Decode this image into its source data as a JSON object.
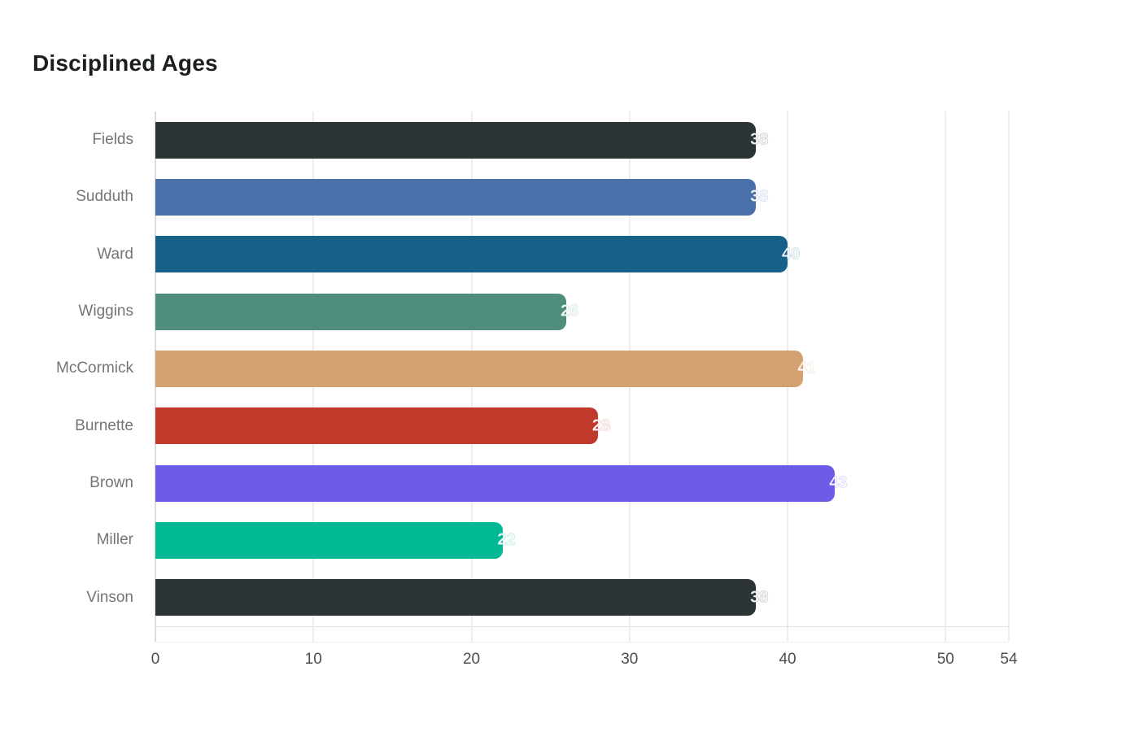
{
  "page": {
    "background": "#ffffff"
  },
  "chart_data": {
    "type": "bar",
    "orientation": "horizontal",
    "title": "Disciplined Ages",
    "categories": [
      "Fields",
      "Sudduth",
      "Ward",
      "Wiggins",
      "McCormick",
      "Burnette",
      "Brown",
      "Miller",
      "Vinson"
    ],
    "values": [
      38,
      38,
      40,
      26,
      41,
      28,
      43,
      22,
      38
    ],
    "value_labels": [
      "38",
      "38",
      "40",
      "26",
      "41",
      "28",
      "43",
      "22",
      "38"
    ],
    "bar_colors": [
      "#2d3436",
      "#4a70a9",
      "#16618a",
      "#4f8e7c",
      "#d4a271",
      "#c0392b",
      "#6c5ce7",
      "#00b894",
      "#2d3436"
    ],
    "xlabel": "",
    "ylabel": "",
    "xlim": [
      0,
      54
    ],
    "x_ticks": [
      0,
      10,
      20,
      30,
      40,
      50,
      54
    ],
    "gridline_ticks": [
      10,
      20,
      30,
      40,
      50,
      54
    ],
    "grid": true,
    "legend": false,
    "colors": {
      "title": "#1b1e21",
      "category_label": "#757575",
      "tick_label": "#4d4d4d",
      "gridline": "#ededed",
      "axis_line": "#e2e2e2",
      "value_label": "#ffffff"
    }
  }
}
